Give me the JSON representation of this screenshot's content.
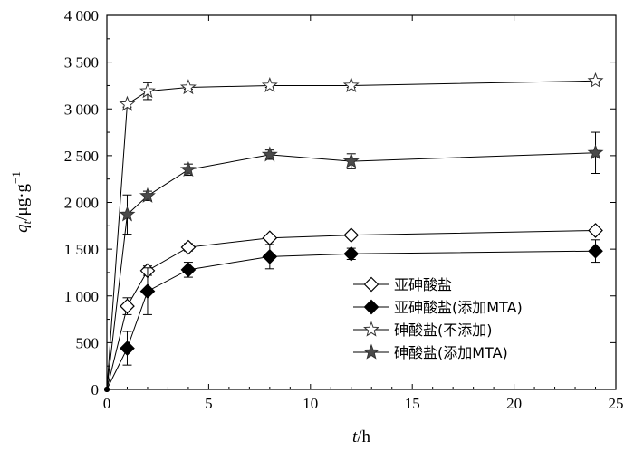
{
  "chart_data": {
    "type": "line",
    "xlabel_var": "t",
    "xlabel_unit": "/h",
    "ylabel_var": "q",
    "ylabel_sub": "t",
    "ylabel_unit": "/μg·g",
    "ylabel_sup": "−1",
    "xlim": [
      0,
      25
    ],
    "ylim": [
      0,
      4000
    ],
    "x_ticks": [
      0,
      5,
      10,
      15,
      20,
      25
    ],
    "x_tick_labels": [
      "0",
      "5",
      "10",
      "15",
      "20",
      "25"
    ],
    "y_ticks": [
      0,
      500,
      1000,
      1500,
      2000,
      2500,
      3000,
      3500,
      4000
    ],
    "y_tick_labels": [
      "0",
      "500",
      "1 000",
      "1 500",
      "2 000",
      "2 500",
      "3 000",
      "3 500",
      "4 000"
    ],
    "grid": false,
    "legend_position": "bottom-right",
    "series": [
      {
        "name": "亚砷酸盐",
        "marker": "diamond-open",
        "points": [
          {
            "x": 0,
            "y": 0,
            "err": 0
          },
          {
            "x": 1,
            "y": 890,
            "err": 90
          },
          {
            "x": 2,
            "y": 1270,
            "err": 50
          },
          {
            "x": 4,
            "y": 1520,
            "err": 40
          },
          {
            "x": 8,
            "y": 1620,
            "err": 30
          },
          {
            "x": 12,
            "y": 1650,
            "err": 25
          },
          {
            "x": 24,
            "y": 1700,
            "err": 30
          }
        ]
      },
      {
        "name": "亚砷酸盐(添加MTA)",
        "marker": "diamond-filled",
        "points": [
          {
            "x": 0,
            "y": 0,
            "err": 0
          },
          {
            "x": 1,
            "y": 440,
            "err": 180
          },
          {
            "x": 2,
            "y": 1050,
            "err": 250
          },
          {
            "x": 4,
            "y": 1280,
            "err": 80
          },
          {
            "x": 8,
            "y": 1420,
            "err": 130
          },
          {
            "x": 12,
            "y": 1450,
            "err": 60
          },
          {
            "x": 24,
            "y": 1480,
            "err": 120
          }
        ]
      },
      {
        "name": "砷酸盐(不添加)",
        "marker": "star-open",
        "points": [
          {
            "x": 0,
            "y": 0,
            "err": 0
          },
          {
            "x": 1,
            "y": 3050,
            "err": 30
          },
          {
            "x": 2,
            "y": 3190,
            "err": 90
          },
          {
            "x": 4,
            "y": 3230,
            "err": 20
          },
          {
            "x": 8,
            "y": 3250,
            "err": 20
          },
          {
            "x": 12,
            "y": 3250,
            "err": 20
          },
          {
            "x": 24,
            "y": 3300,
            "err": 20
          }
        ]
      },
      {
        "name": "砷酸盐(添加MTA)",
        "marker": "star-filled",
        "points": [
          {
            "x": 0,
            "y": 0,
            "err": 0
          },
          {
            "x": 1,
            "y": 1870,
            "err": 210
          },
          {
            "x": 2,
            "y": 2070,
            "err": 50
          },
          {
            "x": 4,
            "y": 2350,
            "err": 60
          },
          {
            "x": 8,
            "y": 2510,
            "err": 50
          },
          {
            "x": 12,
            "y": 2440,
            "err": 80
          },
          {
            "x": 24,
            "y": 2530,
            "err": 220
          }
        ]
      }
    ]
  }
}
